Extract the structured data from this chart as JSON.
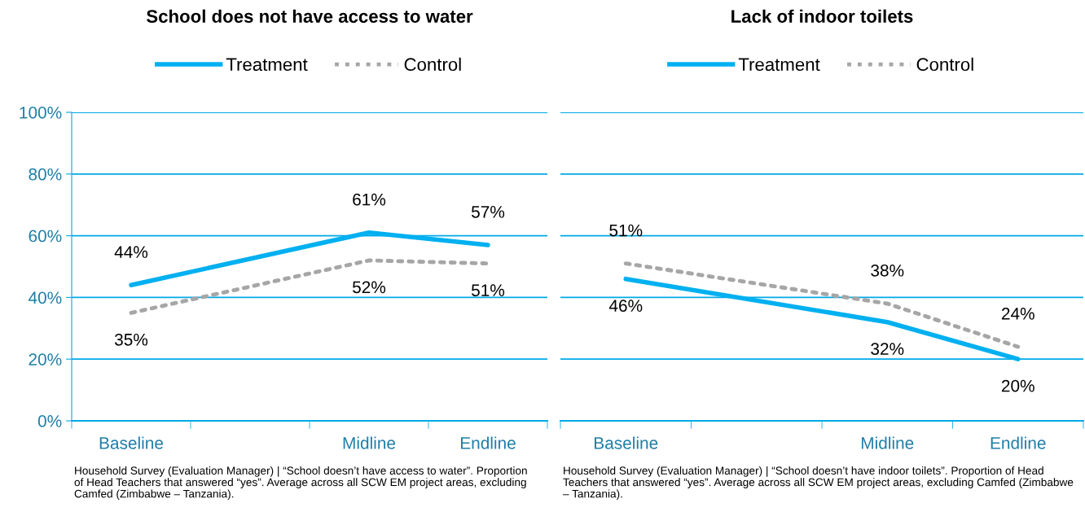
{
  "chart_data": [
    {
      "type": "line",
      "title": "School does not have access to water",
      "categories": [
        "Baseline",
        null,
        "Midline",
        "Endline"
      ],
      "series": [
        {
          "name": "Treatment",
          "color": "#00b0f0",
          "line_style": "solid",
          "values": [
            44,
            null,
            61,
            57
          ],
          "value_labels": [
            "44%",
            null,
            "61%",
            "57%"
          ]
        },
        {
          "name": "Control",
          "color": "#a6a6a6",
          "line_style": "dotted",
          "values": [
            35,
            null,
            52,
            51
          ],
          "value_labels": [
            "35%",
            null,
            "52%",
            "51%"
          ]
        }
      ],
      "ylim": [
        0,
        100
      ],
      "yticks": [
        {
          "value": 0,
          "label": "0%"
        },
        {
          "value": 20,
          "label": "20%"
        },
        {
          "value": 40,
          "label": "40%"
        },
        {
          "value": 60,
          "label": "60%"
        },
        {
          "value": 80,
          "label": "80%"
        },
        {
          "value": 100,
          "label": "100%"
        }
      ],
      "grid": "y",
      "legend": "top",
      "marker": "none",
      "annotations": [
        "Household Survey (Evaluation Manager) | “School doesn’t have access to water”. Proportion of Head Teachers that answered “yes”. Average across all SCW EM project areas, excluding Camfed (Zimbabwe – Tanzania)."
      ]
    },
    {
      "type": "line",
      "title": "Lack of indoor toilets",
      "categories": [
        "Baseline",
        null,
        "Midline",
        "Endline"
      ],
      "series": [
        {
          "name": "Treatment",
          "color": "#00b0f0",
          "line_style": "solid",
          "values": [
            46,
            null,
            32,
            20
          ],
          "value_labels": [
            "46%",
            null,
            "32%",
            "20%"
          ]
        },
        {
          "name": "Control",
          "color": "#a6a6a6",
          "line_style": "dotted",
          "values": [
            51,
            null,
            38,
            24
          ],
          "value_labels": [
            "51%",
            null,
            "38%",
            "24%"
          ]
        }
      ],
      "ylim": [
        0,
        100
      ],
      "yticks": [
        0,
        20,
        40,
        60,
        80,
        100
      ],
      "tick_labels": "x",
      "grid": "y",
      "legend": "top",
      "marker": "none",
      "annotations": [
        "Household Survey (Evaluation Manager) | “School doesn’t have indoor toilets”. Proportion of Head Teachers that answered “yes”. Average across all SCW EM project areas, excluding Camfed (Zimbabwe – Tanzania)."
      ]
    }
  ]
}
